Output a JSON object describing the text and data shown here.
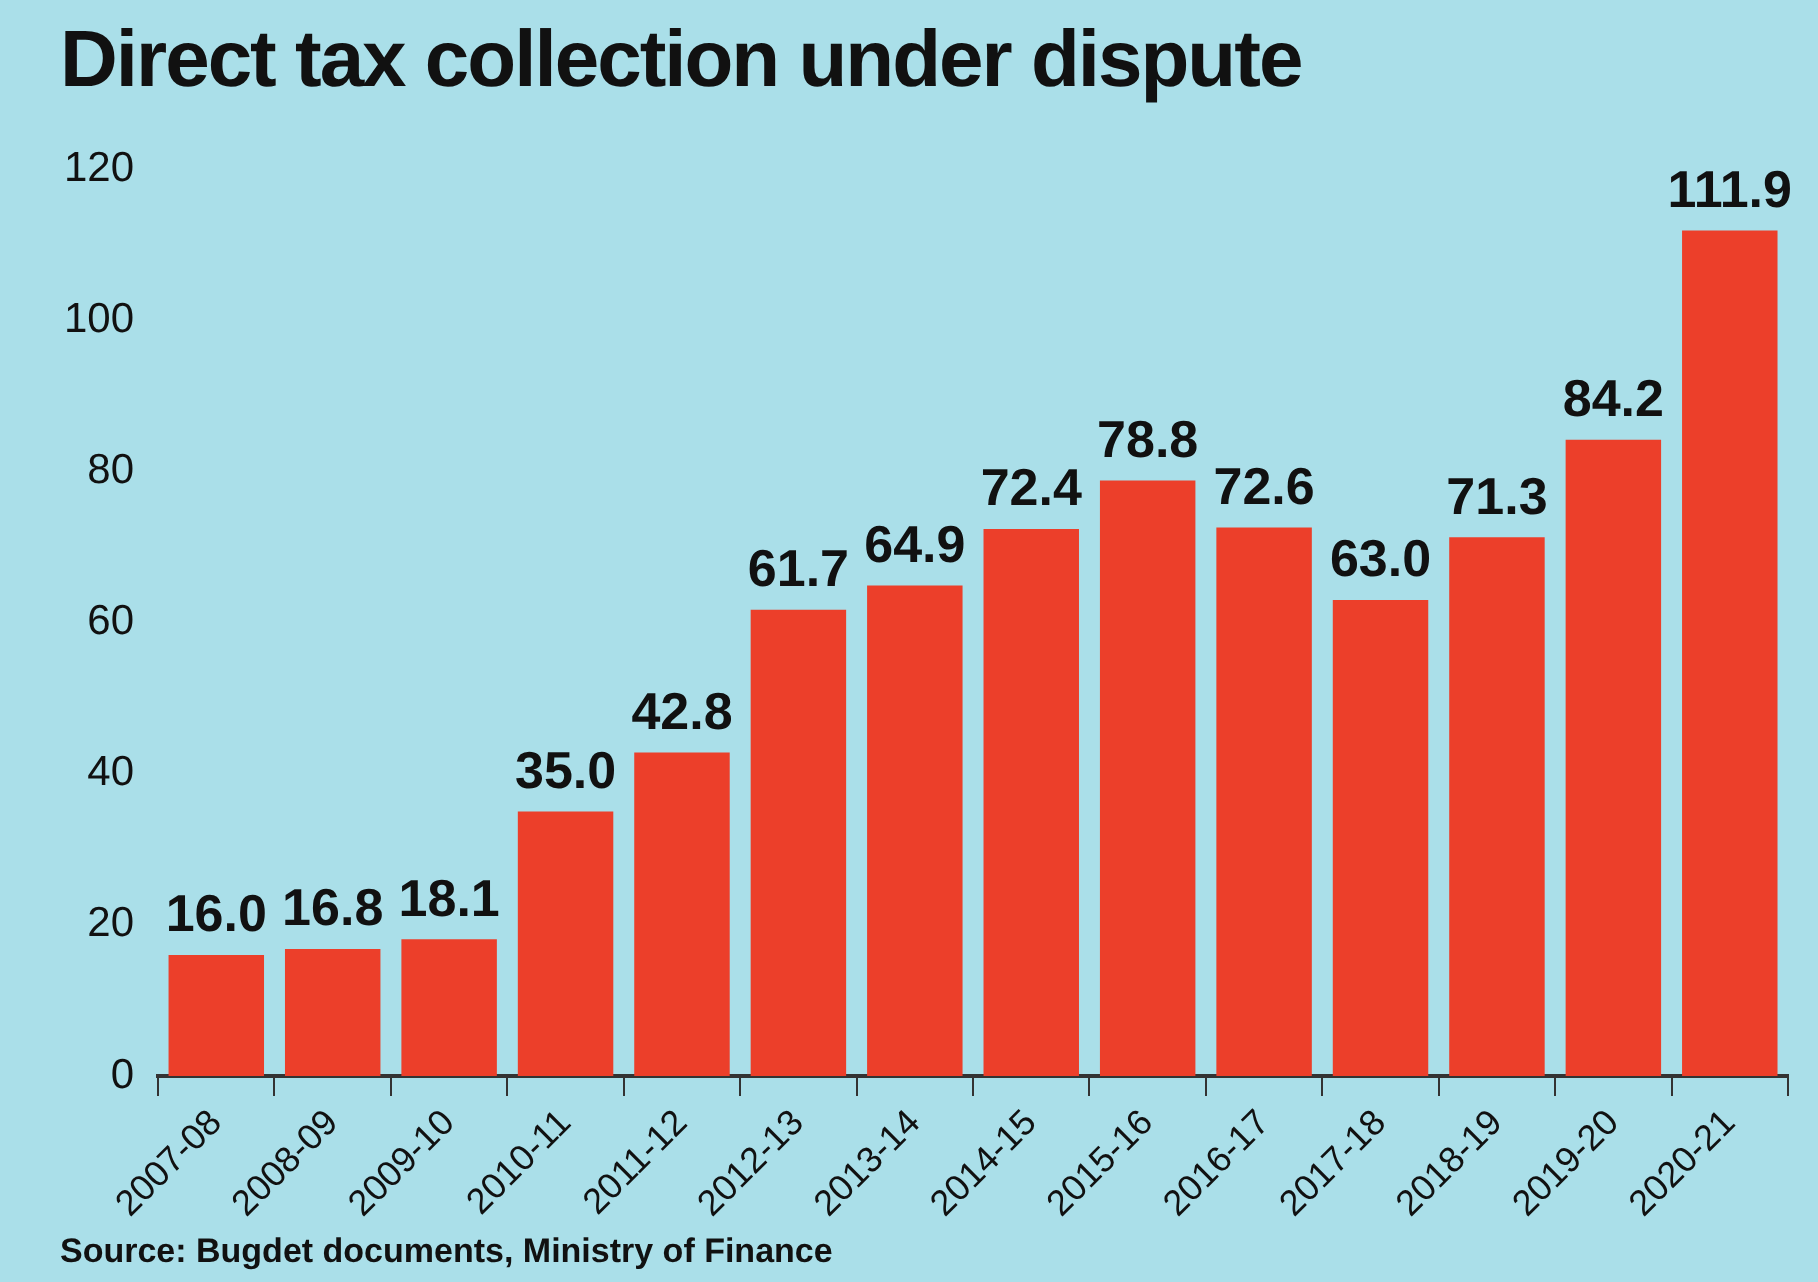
{
  "chart_data": {
    "type": "bar",
    "title": "Direct tax collection under dispute",
    "categories": [
      "2007-08",
      "2008-09",
      "2009-10",
      "2010-11",
      "2011-12",
      "2012-13",
      "2013-14",
      "2014-15",
      "2015-16",
      "2016-17",
      "2017-18",
      "2018-19",
      "2019-20",
      "2020-21"
    ],
    "values": [
      16.0,
      16.8,
      18.1,
      35.0,
      42.8,
      61.7,
      64.9,
      72.4,
      78.8,
      72.6,
      63.0,
      71.3,
      84.2,
      111.9
    ],
    "color": "#ec3f2a",
    "ylim": [
      0,
      120
    ],
    "yticks": [
      0,
      20,
      40,
      60,
      80,
      100,
      120
    ],
    "value_labels": [
      "16.0",
      "16.8",
      "18.1",
      "35.0",
      "42.8",
      "61.7",
      "64.9",
      "72.4",
      "78.8",
      "72.6",
      "63.0",
      "71.3",
      "84.2",
      "111.9"
    ],
    "annotations": [
      "Source: Bugdet documents, Ministry of Finance"
    ]
  }
}
